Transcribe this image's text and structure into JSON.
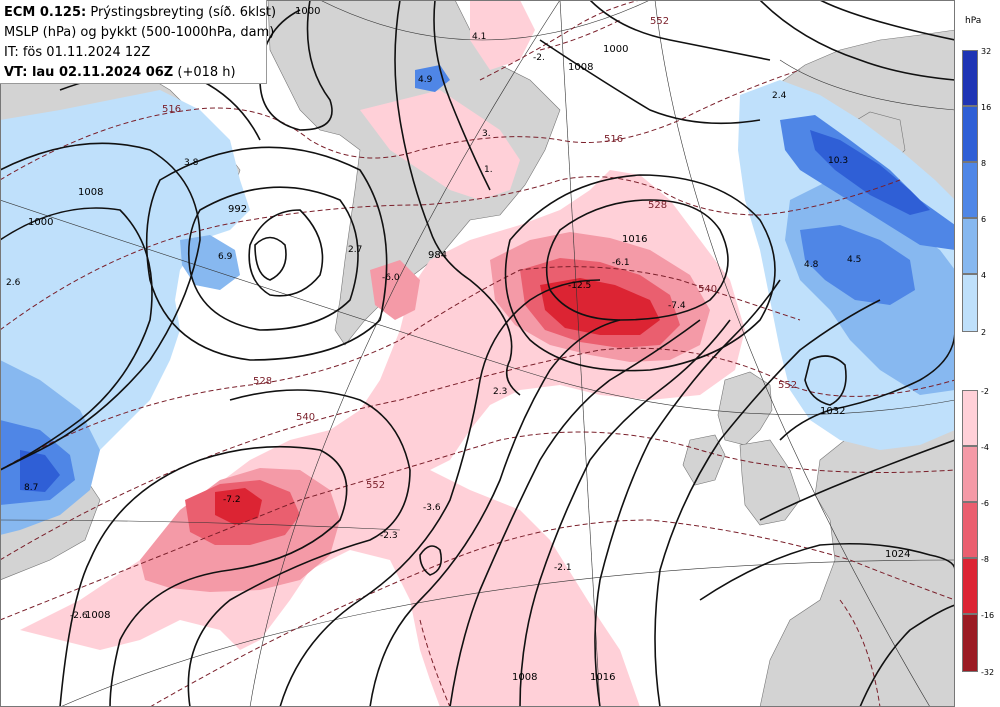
{
  "header": {
    "model": "ECM 0.125:",
    "title_rest": " Prýstingsbreyting (síð. 6klst)",
    "line2": "MSLP (hPa) og þykkt (500-1000hPa, dam)",
    "line3": "IT: fös 01.11.2024 12Z",
    "line4_bold": "VT: lau 02.11.2024 06Z",
    "line4_rest": " (+018 h)"
  },
  "legend": {
    "unit": "hPa",
    "rise": [
      {
        "label": "32",
        "color": "#1f35b5"
      },
      {
        "label": "16",
        "color": "#2f5fd6"
      },
      {
        "label": "8",
        "color": "#4f86e6"
      },
      {
        "label": "6",
        "color": "#87b8f0"
      },
      {
        "label": "4",
        "color": "#bfe0fb"
      },
      {
        "label": "2",
        "color": "#ffffff"
      }
    ],
    "fall": [
      {
        "label": "-2",
        "color": "#ffd0d8"
      },
      {
        "label": "-4",
        "color": "#f49aa7"
      },
      {
        "label": "-6",
        "color": "#ea5f6f"
      },
      {
        "label": "-8",
        "color": "#dc2433"
      },
      {
        "label": "-16",
        "color": "#9b1b23"
      },
      {
        "label": "-32",
        "color": "#ffffff"
      }
    ]
  },
  "isobar_labels": [
    "1000",
    "1008",
    "1016",
    "1024",
    "1032",
    "992",
    "984",
    "1008",
    "1016",
    "1008",
    "1016",
    "1008",
    "1008"
  ],
  "thickness_labels": [
    "516",
    "528",
    "540",
    "552",
    "516",
    "528",
    "540",
    "552",
    "552",
    "540",
    "528",
    "516"
  ],
  "tendency_labels": [
    "4.1",
    "-2.",
    "4.9",
    "3.",
    "1.",
    "3.8",
    "6.9",
    "2.7",
    "-6.0",
    "-12.5",
    "-6.1",
    "-7.4",
    "2.3",
    "-7.2",
    "-3.6",
    "-2.3",
    "-2.1",
    "-2.6",
    "2.6",
    "8.7",
    "10.3",
    "4.8",
    "4.5",
    "2.4"
  ]
}
